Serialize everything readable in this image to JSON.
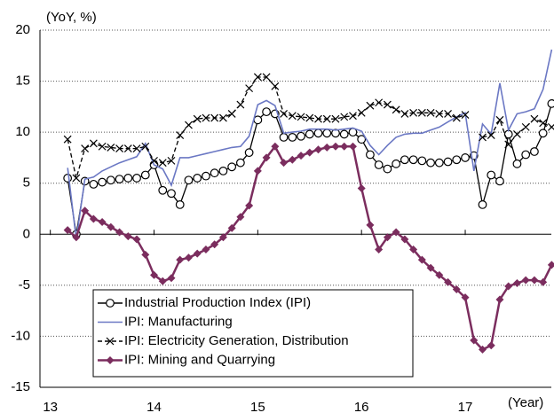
{
  "chart_data": {
    "type": "line",
    "y_label": "(YoY, %)",
    "x_label": "(Year)",
    "x": [
      13.1667,
      13.25,
      13.3333,
      13.4167,
      13.5,
      13.5833,
      13.6667,
      13.75,
      13.8333,
      13.9167,
      14,
      14.0833,
      14.1667,
      14.25,
      14.3333,
      14.4167,
      14.5,
      14.5833,
      14.6667,
      14.75,
      14.8333,
      14.9167,
      15,
      15.0833,
      15.1667,
      15.25,
      15.3333,
      15.4167,
      15.5,
      15.5833,
      15.6667,
      15.75,
      15.8333,
      15.9167,
      16,
      16.0833,
      16.1667,
      16.25,
      16.3333,
      16.4167,
      16.5,
      16.5833,
      16.6667,
      16.75,
      16.8333,
      16.9167,
      17,
      17.0833,
      17.1667,
      17.25,
      17.3333,
      17.4167,
      17.5,
      17.5833,
      17.6667,
      17.75,
      17.8333
    ],
    "xlim": [
      12.9,
      17.83
    ],
    "xticks": [
      13,
      14,
      15,
      16,
      17
    ],
    "ylim": [
      -15,
      20
    ],
    "yticks": [
      -15,
      -10,
      -5,
      0,
      5,
      10,
      15,
      20
    ],
    "grid": true,
    "legend": "lower left",
    "series": [
      {
        "name": "Industrial Production Index (IPI)",
        "color": "#000000",
        "marker": "circle",
        "values": [
          5.5,
          0.0,
          5.2,
          4.9,
          5.1,
          5.3,
          5.4,
          5.5,
          5.5,
          5.8,
          6.8,
          4.3,
          4.0,
          2.9,
          5.3,
          5.5,
          5.7,
          6.0,
          6.2,
          6.6,
          7.0,
          8.0,
          11.2,
          12.0,
          11.8,
          9.5,
          9.5,
          9.6,
          9.8,
          9.9,
          9.9,
          9.9,
          9.8,
          10.0,
          9.3,
          7.8,
          6.8,
          6.4,
          6.9,
          7.3,
          7.3,
          7.2,
          7.0,
          7.0,
          7.1,
          7.3,
          7.5,
          7.7,
          2.9,
          5.8,
          5.2,
          9.8,
          6.9,
          7.8,
          8.1,
          9.9,
          12.8
        ]
      },
      {
        "name": "IPI: Manufacturing",
        "color": "#6b78c4",
        "marker": "none",
        "values": [
          6.5,
          -0.5,
          5.4,
          5.6,
          6.2,
          6.6,
          7.0,
          7.3,
          7.6,
          8.9,
          6.8,
          6.4,
          4.8,
          7.5,
          7.5,
          7.7,
          7.9,
          8.1,
          8.3,
          8.5,
          8.6,
          9.6,
          12.7,
          13.1,
          12.6,
          9.9,
          10.0,
          10.1,
          10.3,
          10.3,
          10.3,
          10.2,
          10.3,
          10.4,
          10.1,
          8.7,
          7.8,
          8.7,
          9.5,
          9.8,
          9.9,
          9.9,
          10.2,
          10.5,
          11.0,
          11.5,
          11.9,
          6.2,
          10.8,
          9.8,
          14.8,
          10.2,
          11.8,
          12.0,
          12.3,
          14.2,
          18.1
        ]
      },
      {
        "name": "IPI: Electricity Generation, Distribution",
        "color": "#000000",
        "marker": "x",
        "values": [
          9.3,
          5.5,
          8.4,
          8.9,
          8.6,
          8.5,
          8.4,
          8.4,
          8.4,
          8.6,
          7.2,
          7.0,
          7.2,
          9.7,
          10.7,
          11.3,
          11.4,
          11.4,
          11.4,
          11.8,
          12.7,
          14.3,
          15.4,
          15.4,
          14.5,
          11.8,
          11.6,
          11.5,
          11.4,
          11.3,
          11.3,
          11.3,
          11.5,
          11.6,
          11.9,
          12.6,
          12.9,
          12.7,
          12.2,
          11.8,
          11.9,
          11.9,
          11.9,
          11.8,
          11.8,
          11.4,
          11.7,
          null,
          9.5,
          9.7,
          11.2,
          8.8,
          9.8,
          10.5,
          11.3,
          10.9,
          10.5
        ]
      },
      {
        "name": "IPI: Mining and Quarrying",
        "color": "#7b2d5e",
        "marker": "diamond",
        "values": [
          0.4,
          -0.3,
          2.3,
          1.5,
          1.2,
          0.7,
          0.2,
          -0.2,
          -0.5,
          -2.0,
          -4.0,
          -4.6,
          -4.3,
          -2.5,
          -2.3,
          -1.9,
          -1.5,
          -1.0,
          -0.3,
          0.6,
          1.7,
          2.8,
          6.2,
          7.5,
          8.6,
          7.0,
          7.3,
          7.7,
          8.0,
          8.3,
          8.5,
          8.6,
          8.6,
          8.6,
          4.5,
          0.9,
          -1.5,
          -0.3,
          0.2,
          -0.5,
          -1.5,
          -2.5,
          -3.3,
          -4.0,
          -4.7,
          -5.4,
          -6.2,
          -10.4,
          -11.3,
          -10.9,
          -6.4,
          -5.1,
          -4.8,
          -4.5,
          -4.5,
          -4.7,
          -3.0
        ]
      }
    ]
  }
}
